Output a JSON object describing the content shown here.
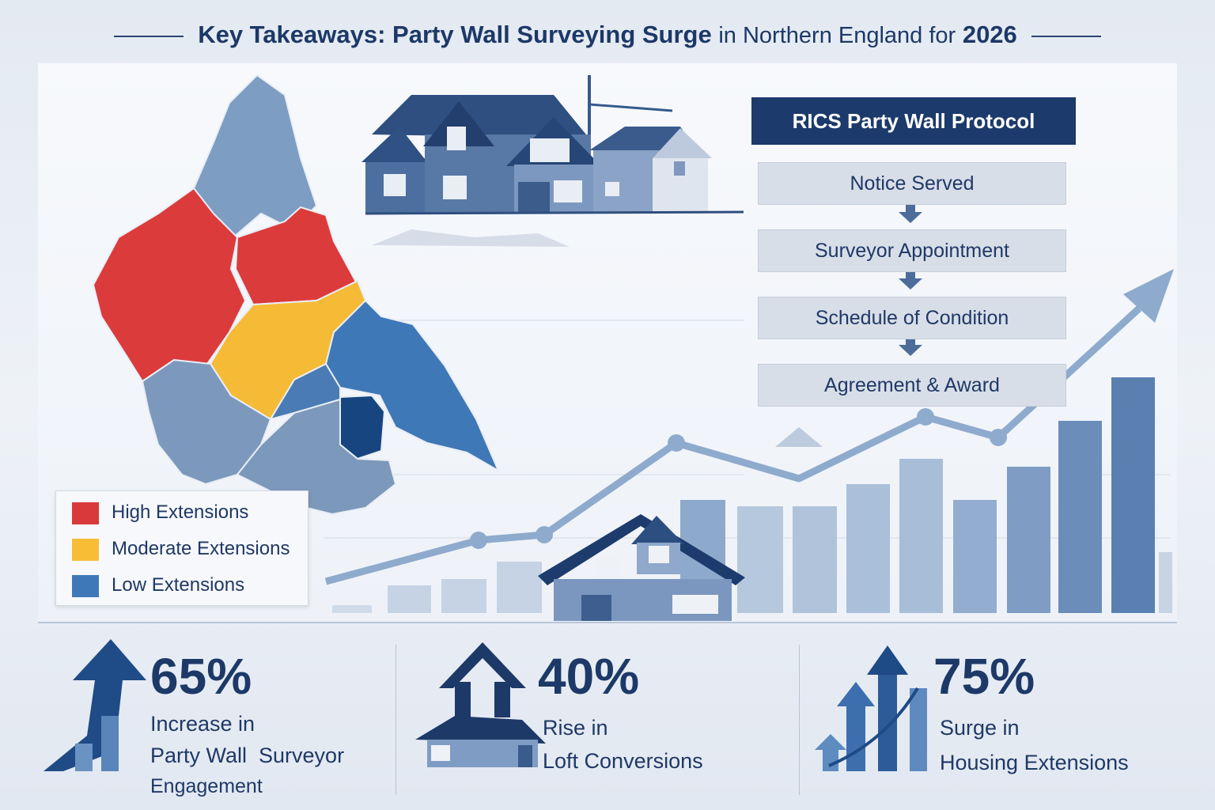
{
  "header": {
    "title_parts": [
      "Key Takeaways: Party Wall Surveying Surge",
      "in Northern England for",
      "2026"
    ]
  },
  "legend": {
    "items": [
      {
        "label": "High Extensions",
        "color": "#d9393b"
      },
      {
        "label": "Moderate Extensions",
        "color": "#f7bd37"
      },
      {
        "label": "Low Extensions",
        "color": "#3e78b8"
      }
    ]
  },
  "protocol": {
    "title": "RICS Party Wall Protocol",
    "steps": [
      "Notice Served",
      "Surveyor Appointment",
      "Schedule of Condition",
      "Agreement & Award"
    ]
  },
  "stats": [
    {
      "value": "65%",
      "lines": [
        "Increase in",
        "Party Wall  Surveyor",
        "Engagement"
      ]
    },
    {
      "value": "40%",
      "lines": [
        "Rise in",
        "Loft Conversions"
      ]
    },
    {
      "value": "75%",
      "lines": [
        "Surge in",
        "Housing Extensions"
      ]
    }
  ]
}
